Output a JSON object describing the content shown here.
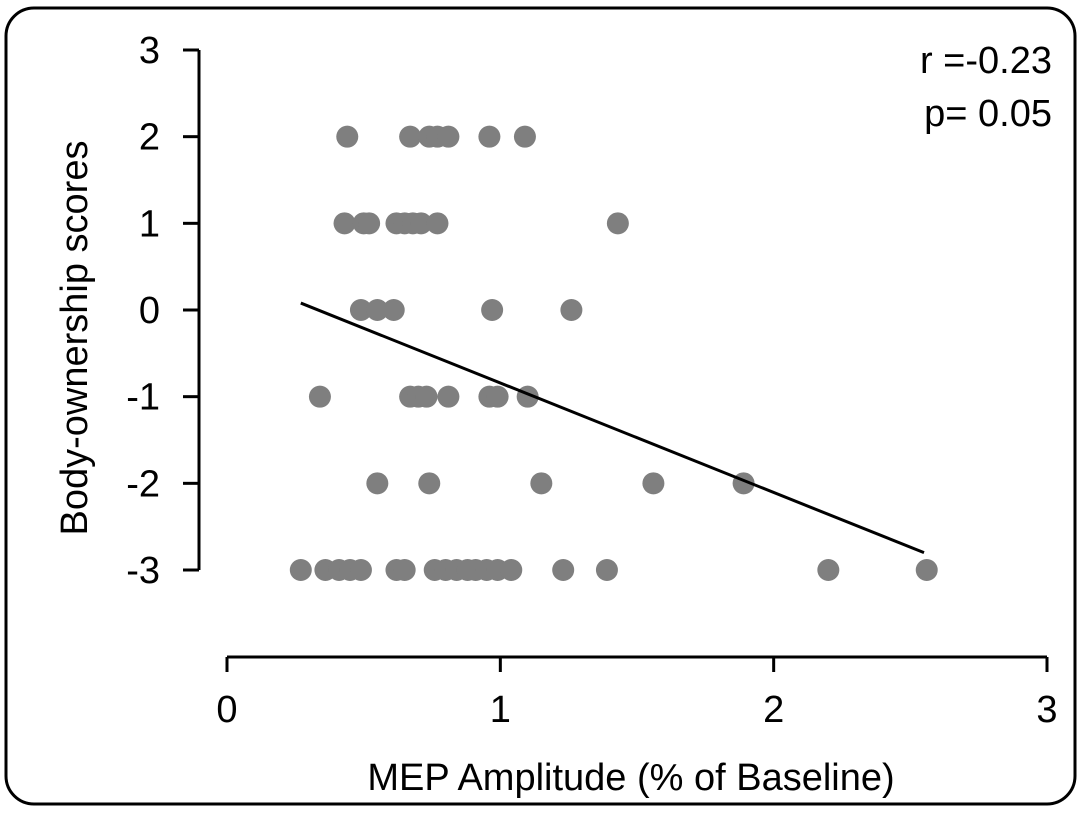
{
  "chart_data": {
    "type": "scatter",
    "title": "",
    "xlabel": "MEP Amplitude (% of Baseline)",
    "ylabel": "Body-ownership scores",
    "xlim": [
      0,
      3
    ],
    "ylim": [
      -3,
      3
    ],
    "xticks": [
      "0",
      "1",
      "2",
      "3"
    ],
    "yticks": [
      "3",
      "2",
      "1",
      "0",
      "-1",
      "-2",
      "-3"
    ],
    "grid": false,
    "legend": "none",
    "annotations": [
      "r =-0.23",
      "p= 0.05"
    ],
    "colors": {
      "points": "#7f7f7f",
      "line": "#000000",
      "frame": "#000000"
    },
    "points": [
      {
        "x": 0.44,
        "y": 2
      },
      {
        "x": 0.67,
        "y": 2
      },
      {
        "x": 0.74,
        "y": 2
      },
      {
        "x": 0.77,
        "y": 2
      },
      {
        "x": 0.81,
        "y": 2
      },
      {
        "x": 0.96,
        "y": 2
      },
      {
        "x": 1.09,
        "y": 2
      },
      {
        "x": 0.43,
        "y": 1
      },
      {
        "x": 0.5,
        "y": 1
      },
      {
        "x": 0.52,
        "y": 1
      },
      {
        "x": 0.62,
        "y": 1
      },
      {
        "x": 0.65,
        "y": 1
      },
      {
        "x": 0.68,
        "y": 1
      },
      {
        "x": 0.71,
        "y": 1
      },
      {
        "x": 0.77,
        "y": 1
      },
      {
        "x": 1.43,
        "y": 1
      },
      {
        "x": 0.49,
        "y": 0
      },
      {
        "x": 0.55,
        "y": 0
      },
      {
        "x": 0.61,
        "y": 0
      },
      {
        "x": 0.97,
        "y": 0
      },
      {
        "x": 1.26,
        "y": 0
      },
      {
        "x": 0.34,
        "y": -1
      },
      {
        "x": 0.67,
        "y": -1
      },
      {
        "x": 0.7,
        "y": -1
      },
      {
        "x": 0.73,
        "y": -1
      },
      {
        "x": 0.81,
        "y": -1
      },
      {
        "x": 0.96,
        "y": -1
      },
      {
        "x": 0.99,
        "y": -1
      },
      {
        "x": 1.1,
        "y": -1
      },
      {
        "x": 0.55,
        "y": -2
      },
      {
        "x": 0.74,
        "y": -2
      },
      {
        "x": 1.15,
        "y": -2
      },
      {
        "x": 1.56,
        "y": -2
      },
      {
        "x": 1.89,
        "y": -2
      },
      {
        "x": 0.27,
        "y": -3
      },
      {
        "x": 0.36,
        "y": -3
      },
      {
        "x": 0.41,
        "y": -3
      },
      {
        "x": 0.45,
        "y": -3
      },
      {
        "x": 0.49,
        "y": -3
      },
      {
        "x": 0.62,
        "y": -3
      },
      {
        "x": 0.65,
        "y": -3
      },
      {
        "x": 0.76,
        "y": -3
      },
      {
        "x": 0.8,
        "y": -3
      },
      {
        "x": 0.84,
        "y": -3
      },
      {
        "x": 0.88,
        "y": -3
      },
      {
        "x": 0.91,
        "y": -3
      },
      {
        "x": 0.95,
        "y": -3
      },
      {
        "x": 0.99,
        "y": -3
      },
      {
        "x": 1.04,
        "y": -3
      },
      {
        "x": 1.23,
        "y": -3
      },
      {
        "x": 1.39,
        "y": -3
      },
      {
        "x": 2.2,
        "y": -3
      },
      {
        "x": 2.56,
        "y": -3
      }
    ],
    "trendline": {
      "x": [
        0.27,
        2.55
      ],
      "y": [
        0.08,
        -2.8
      ]
    }
  }
}
